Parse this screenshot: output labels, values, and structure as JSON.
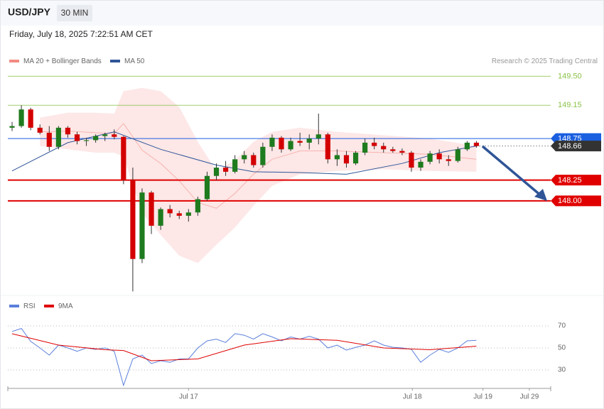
{
  "chart_data": {
    "type": "candlestick",
    "title": "USD/JPY",
    "timeframe": "30 MIN",
    "subtitle": "Friday, July 18, 2025 7:22:51 AM CET",
    "credit": "Research © 2025 Trading Central",
    "xlim": [
      -0.46,
      58
    ],
    "ylim": [
      146.87,
      150.11
    ],
    "xticks": [
      {
        "value": 19,
        "label": "Jul 17"
      },
      {
        "value": 43.1,
        "label": "Jul 18"
      },
      {
        "value": 50.7,
        "label": "Jul 19"
      },
      {
        "value": 55.7,
        "label": "Jul 29"
      }
    ],
    "up_color": "#1e7b1e",
    "down_color": "#d40000",
    "open": [
      148.88,
      148.9,
      149.1,
      148.88,
      148.82,
      148.65,
      148.88,
      148.8,
      148.72,
      148.73,
      148.78,
      148.8,
      148.77,
      148.25,
      147.3,
      148.1,
      147.7,
      147.9,
      147.85,
      147.82,
      147.86,
      148.02,
      148.3,
      148.4,
      148.35,
      148.5,
      148.55,
      148.43,
      148.65,
      148.76,
      148.62,
      148.72,
      148.7,
      148.75,
      148.8,
      148.5,
      148.55,
      148.45,
      148.58,
      148.7,
      148.66,
      148.62,
      148.6,
      148.58,
      148.4,
      148.47,
      148.57,
      148.5,
      148.48,
      148.62,
      148.7
    ],
    "high": [
      148.95,
      149.15,
      149.12,
      148.92,
      148.9,
      148.9,
      148.9,
      148.83,
      148.76,
      148.8,
      148.82,
      148.86,
      148.78,
      148.4,
      148.15,
      148.12,
      147.92,
      147.95,
      147.88,
      147.9,
      148.05,
      148.35,
      148.45,
      148.48,
      148.55,
      148.6,
      148.58,
      148.7,
      148.8,
      148.78,
      148.76,
      148.82,
      148.8,
      149.05,
      148.82,
      148.62,
      148.6,
      148.6,
      148.75,
      148.76,
      148.7,
      148.65,
      148.63,
      148.6,
      148.5,
      148.6,
      148.62,
      148.55,
      148.65,
      148.72,
      148.72
    ],
    "low": [
      148.84,
      148.88,
      148.85,
      148.8,
      148.6,
      148.62,
      148.76,
      148.68,
      148.66,
      148.7,
      148.72,
      148.74,
      148.2,
      146.91,
      147.25,
      147.6,
      147.65,
      147.8,
      147.78,
      147.75,
      147.82,
      148.0,
      148.25,
      148.3,
      148.33,
      148.45,
      148.4,
      148.4,
      148.6,
      148.58,
      148.6,
      148.66,
      148.62,
      148.68,
      148.45,
      148.42,
      148.4,
      148.43,
      148.55,
      148.62,
      148.58,
      148.58,
      148.55,
      148.35,
      148.36,
      148.44,
      148.45,
      148.42,
      148.46,
      148.6,
      148.64
    ],
    "close": [
      148.9,
      149.1,
      148.88,
      148.82,
      148.65,
      148.88,
      148.8,
      148.72,
      148.73,
      148.78,
      148.8,
      148.77,
      148.25,
      147.3,
      148.1,
      147.7,
      147.9,
      147.85,
      147.82,
      147.86,
      148.02,
      148.3,
      148.4,
      148.35,
      148.5,
      148.55,
      148.43,
      148.65,
      148.76,
      148.62,
      148.72,
      148.7,
      148.75,
      148.8,
      148.5,
      148.55,
      148.45,
      148.58,
      148.7,
      148.66,
      148.62,
      148.6,
      148.58,
      148.4,
      148.47,
      148.57,
      148.5,
      148.48,
      148.62,
      148.7,
      148.66
    ],
    "bollinger": {
      "name": "MA 20 + Bollinger Bands",
      "color": "#f28b82",
      "fill": "#fde3e3",
      "x": [
        3,
        6,
        9,
        11,
        12,
        14,
        16,
        18,
        20,
        22,
        24,
        26,
        28,
        31,
        35,
        40,
        45,
        50
      ],
      "upper": [
        149.0,
        149.06,
        149.06,
        149.05,
        149.32,
        149.36,
        149.32,
        149.13,
        148.71,
        148.36,
        148.49,
        148.71,
        148.83,
        148.88,
        148.83,
        148.79,
        148.75,
        148.66
      ],
      "middle": [
        148.83,
        148.84,
        148.82,
        148.81,
        148.93,
        148.61,
        148.45,
        148.24,
        147.98,
        147.91,
        148.09,
        148.32,
        148.5,
        148.6,
        148.6,
        148.58,
        148.56,
        148.5
      ],
      "lower": [
        148.66,
        148.62,
        148.58,
        148.58,
        148.53,
        147.85,
        147.59,
        147.34,
        147.25,
        147.47,
        147.68,
        147.94,
        148.18,
        148.32,
        148.36,
        148.38,
        148.36,
        148.35
      ]
    },
    "ma50": {
      "name": "MA 50",
      "color": "#2f5597",
      "x": [
        0,
        6,
        11,
        16,
        22,
        26,
        31,
        36,
        42,
        46,
        50
      ],
      "values": [
        148.36,
        148.7,
        148.83,
        148.62,
        148.43,
        148.35,
        148.34,
        148.32,
        148.45,
        148.58,
        148.66
      ]
    },
    "levels": [
      {
        "value": 149.5,
        "label": "149.50",
        "color": "#8bc34a",
        "style": "plain"
      },
      {
        "value": 149.15,
        "label": "149.15",
        "color": "#8bc34a",
        "style": "plain"
      },
      {
        "value": 148.75,
        "label": "148.75",
        "color": "#1a5fe0",
        "style": "badge"
      },
      {
        "value": 148.66,
        "label": "148.66",
        "color": "#333333",
        "style": "dotted"
      },
      {
        "value": 148.25,
        "label": "148.25",
        "color": "#e00000",
        "style": "thick"
      },
      {
        "value": 148.0,
        "label": "148.00",
        "color": "#e00000",
        "style": "thick"
      }
    ],
    "rsi": {
      "ylim": [
        14.5,
        82.3
      ],
      "yticks": [
        30,
        50,
        70
      ],
      "series": [
        {
          "name": "RSI",
          "color": "#5b7fdb",
          "x": [
            0,
            1,
            2,
            3,
            4,
            5,
            6,
            7,
            8,
            9,
            10,
            11,
            12,
            13,
            14,
            15,
            16,
            17,
            18,
            19,
            20,
            21,
            22,
            23,
            24,
            25,
            26,
            27,
            28,
            29,
            30,
            31,
            32,
            33,
            34,
            35,
            36,
            37,
            38,
            39,
            40,
            41,
            42,
            43,
            44,
            45,
            46,
            47,
            48,
            49,
            50
          ],
          "values": [
            65,
            67.7,
            56,
            50,
            43.5,
            52.6,
            50,
            47,
            50,
            48.7,
            50,
            47,
            16,
            40,
            43.5,
            35.8,
            38.4,
            37,
            40,
            40,
            50,
            56.5,
            58,
            55,
            63,
            61.6,
            58,
            63,
            60,
            56.5,
            60,
            58,
            60.6,
            58,
            50,
            52.6,
            48,
            50.6,
            52.6,
            56.5,
            52.6,
            50.6,
            50,
            48.7,
            37,
            43.5,
            48.7,
            46,
            50,
            56.5,
            57
          ]
        },
        {
          "name": "9MA",
          "color": "#e00000",
          "x": [
            0,
            5,
            10,
            12,
            15,
            20,
            25,
            30,
            35,
            40,
            45,
            50
          ],
          "values": [
            62.9,
            52.6,
            48.4,
            47.7,
            38.4,
            40,
            52.6,
            58.4,
            57,
            50,
            48.4,
            51.6
          ]
        }
      ]
    }
  }
}
